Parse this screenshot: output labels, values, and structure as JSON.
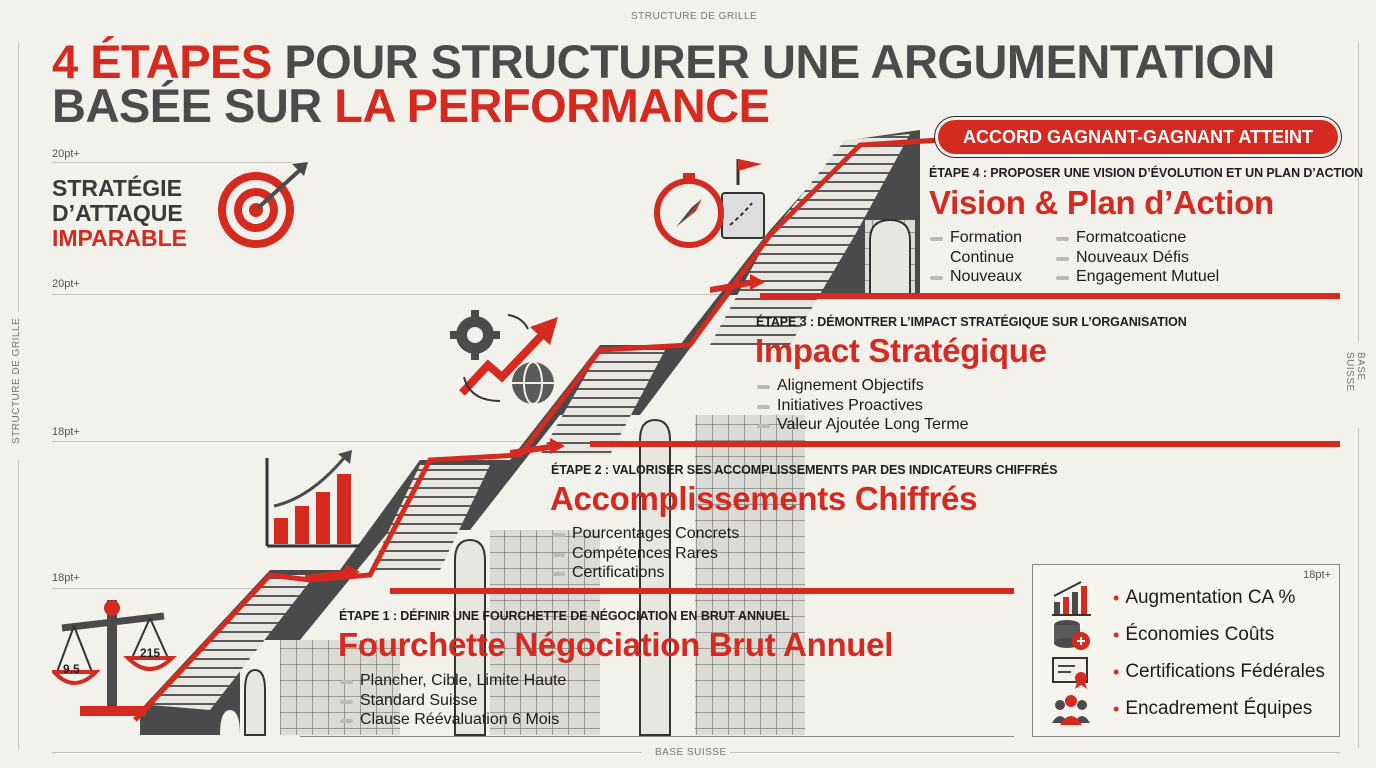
{
  "grid": {
    "top_label": "STRUCTURE DE GRILLE",
    "bottom_label": "BASE SUISSE",
    "left_label": "STRUCTURE DE GRILLE",
    "right_label": "BASE SUISSE"
  },
  "title": {
    "line1_red": "4 ÉTAPES",
    "line1_gray": "POUR STRUCTURER UNE ARGUMENTATION",
    "line2_gray": "BASÉE SUR",
    "line2_red": "LA PERFORMANCE"
  },
  "size_markers": [
    "20pt+",
    "20pt+",
    "18pt+",
    "18pt+",
    "18pt+"
  ],
  "slogan": {
    "line1": "STRATÉGIE",
    "line2": "D’ATTAQUE",
    "line3": "IMPARABLE"
  },
  "badge": "ACCORD GAGNANT-GAGNANT ATTEINT",
  "steps": [
    {
      "label": "ÉTAPE 1 : DÉFINIR UNE FOURCHETTE DE NÉGOCIATION EN BRUT ANNUEL",
      "title": "Fourchette Négociation Brut Annuel",
      "bullets": [
        "Plancher, Cible, Limite Haute",
        "Standard Suisse",
        "Clause Réévaluation 6 Mois"
      ]
    },
    {
      "label": "ÉTAPE 2 : VALORISER SES ACCOMPLISSEMENTS PAR DES INDICATEURS CHIFFRÉS",
      "title": "Accomplissements Chiffrés",
      "bullets": [
        "Pourcentages Concrets",
        "Compétences Rares",
        "Certifications"
      ]
    },
    {
      "label": "ÉTAPE 3 : DÉMONTRER L’IMPACT STRATÉGIQUE SUR L’ORGANISATION",
      "title": "Impact Stratégique",
      "bullets": [
        "Alignement Objectifs",
        "Initiatives Proactives",
        "Valeur Ajoutée Long Terme"
      ]
    },
    {
      "label": "ÉTAPE 4 : PROPOSER UNE VISION D’ÉVOLUTION ET UN PLAN D’ACTION",
      "title": "Vision & Plan d’Action",
      "bullets_left": [
        "Formation Continue",
        "Nouveaux"
      ],
      "bullets_right": [
        "Formatcoaticne",
        "Nouveaux Défis",
        "Engagement Mutuel"
      ]
    }
  ],
  "scale_values": {
    "left": "9.5",
    "right": "215"
  },
  "panel": {
    "marker": "18pt+",
    "items": [
      {
        "icon": "bar-chart-icon",
        "label": "Augmentation CA %"
      },
      {
        "icon": "coins-icon",
        "label": "Économies Coûts"
      },
      {
        "icon": "certificate-icon",
        "label": "Certifications Fédérales"
      },
      {
        "icon": "team-icon",
        "label": "Encadrement Équipes"
      }
    ]
  },
  "colors": {
    "accent": "#d42a20",
    "dark": "#4b4b4b",
    "background": "#f3f1ec"
  }
}
